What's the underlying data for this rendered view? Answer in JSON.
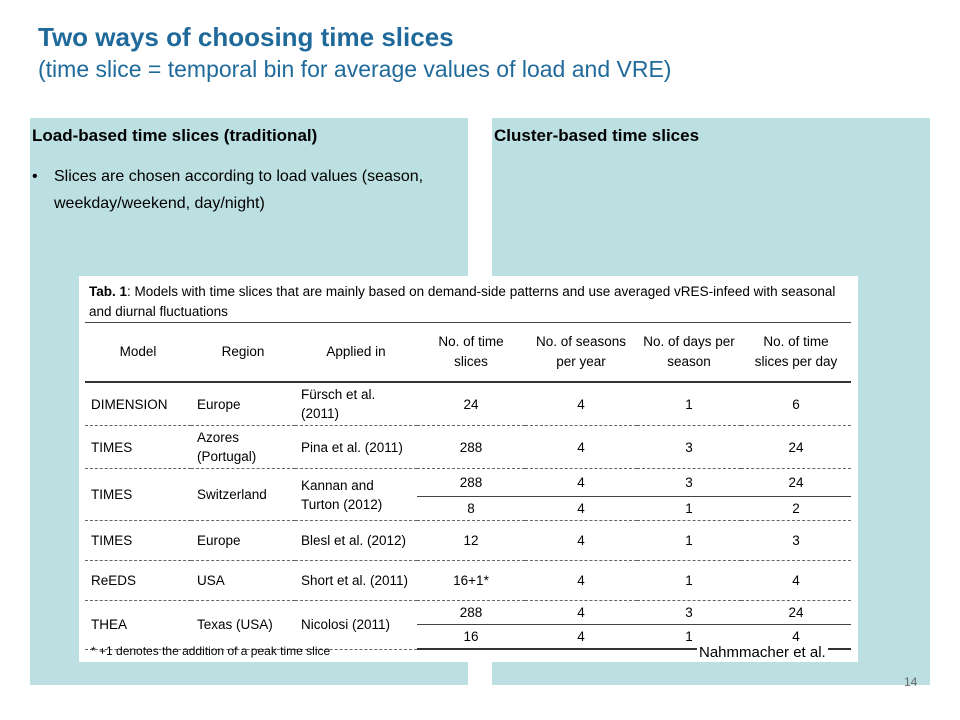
{
  "slide": {
    "title": "Two ways of choosing time slices",
    "subtitle": "(time slice = temporal bin for average values of load and VRE)",
    "page_number": "14",
    "credit": "Nahmmacher et al."
  },
  "left_panel": {
    "heading": "Load-based time slices (traditional)",
    "bullet_symbol": "•",
    "bullet": "Slices are chosen according to load values (season, weekday/weekend, day/night)"
  },
  "right_panel": {
    "heading": "Cluster-based time slices"
  },
  "table": {
    "caption_label": "Tab. 1",
    "caption_text": ": Models with time slices that are mainly based on demand-side patterns and use averaged vRES-infeed with seasonal and diurnal fluctuations",
    "headers": [
      "Model",
      "Region",
      "Applied in",
      "No. of time slices",
      "No. of seasons per year",
      "No. of days per season",
      "No. of time slices per day"
    ],
    "rows": [
      {
        "model": "DIMENSION",
        "region": "Europe",
        "applied": "Fürsch et al. (2011)",
        "data": [
          [
            "24",
            "4",
            "1",
            "6"
          ]
        ]
      },
      {
        "model": "TIMES",
        "region": "Azores (Portugal)",
        "applied": "Pina et al. (2011)",
        "data": [
          [
            "288",
            "4",
            "3",
            "24"
          ]
        ]
      },
      {
        "model": "TIMES",
        "region": "Switzerland",
        "applied": "Kannan and Turton (2012)",
        "data": [
          [
            "288",
            "4",
            "3",
            "24"
          ],
          [
            "8",
            "4",
            "1",
            "2"
          ]
        ]
      },
      {
        "model": "TIMES",
        "region": "Europe",
        "applied": "Blesl et al. (2012)",
        "data": [
          [
            "12",
            "4",
            "1",
            "3"
          ]
        ]
      },
      {
        "model": "ReEDS",
        "region": "USA",
        "applied": "Short et al. (2011)",
        "data": [
          [
            "16+1*",
            "4",
            "1",
            "4"
          ]
        ]
      },
      {
        "model": "THEA",
        "region": "Texas (USA)",
        "applied": "Nicolosi (2011)",
        "data": [
          [
            "288",
            "4",
            "3",
            "24"
          ],
          [
            "16",
            "4",
            "1",
            "4"
          ]
        ]
      }
    ],
    "footnote": "* +1 denotes the addition of a peak time slice"
  }
}
